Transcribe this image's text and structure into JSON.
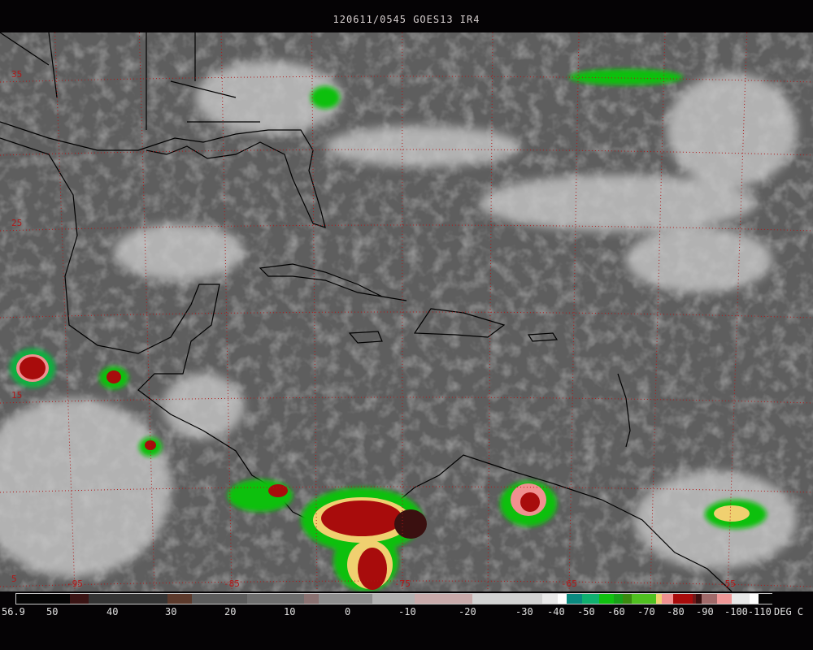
{
  "title": "120611/0545 GOES13  IR4",
  "map": {
    "latitude_labels": [
      "35",
      "25",
      "15",
      "5"
    ],
    "longitude_labels": [
      "-95",
      "-85",
      "-75",
      "-65",
      "-55"
    ],
    "grid_color": "#b01818",
    "coastline_color": "#000000"
  },
  "colorbar": {
    "unit": "DEG C",
    "labels": [
      "56.9",
      "50",
      "40",
      "30",
      "20",
      "10",
      "0",
      "-10",
      "-20",
      "-30",
      "-40",
      "-50",
      "-60",
      "-70",
      "-80",
      "-90",
      "-100-110"
    ],
    "colors": [
      "#050505",
      "#3a1414",
      "#343434",
      "#5c3a2c",
      "#5c5c5c",
      "#6e6e6e",
      "#8a7272",
      "#8e8e8e",
      "#b2b2b2",
      "#c8aaaa",
      "#d2d2d2",
      "#e8e8e8",
      "#ffffff",
      "#0a8a80",
      "#10b070",
      "#10c010",
      "#18a018",
      "#3a8a10",
      "#50c020",
      "#f0d070",
      "#f09090",
      "#a80c0c",
      "#701818",
      "#3a1010",
      "#a06a6a",
      "#f09898",
      "#e8e8e8",
      "#ffffff",
      "#050505"
    ]
  }
}
